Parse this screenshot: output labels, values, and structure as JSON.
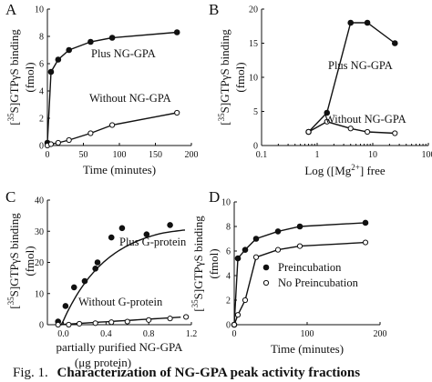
{
  "caption": {
    "prefix": "Fig. 1.",
    "bold": "Characterization of NG-GPA peak activity fractions"
  },
  "chart_data": [
    {
      "panel": "A",
      "type": "line",
      "xlabel": "Time (minutes)",
      "ylabel": "[35S]GTPγS binding (fmol)",
      "ylabel_parts": [
        "[",
        "35",
        "S]GTPγS binding",
        "(fmol)"
      ],
      "xlim": [
        0,
        200
      ],
      "ylim": [
        0,
        10
      ],
      "xticks": [
        0,
        50,
        100,
        150,
        200
      ],
      "yticks": [
        0,
        2,
        4,
        6,
        8,
        10
      ],
      "grid": false,
      "series": [
        {
          "name": "Plus NG-GPA",
          "marker": "filled-circle",
          "x": [
            0,
            5,
            15,
            30,
            60,
            90,
            180
          ],
          "y": [
            0.2,
            5.4,
            6.3,
            7.0,
            7.6,
            7.9,
            8.3
          ]
        },
        {
          "name": "Without NG-GPA",
          "marker": "open-circle",
          "x": [
            0,
            5,
            15,
            30,
            60,
            90,
            180
          ],
          "y": [
            0,
            0.1,
            0.2,
            0.4,
            0.9,
            1.5,
            2.4
          ]
        }
      ]
    },
    {
      "panel": "B",
      "type": "line",
      "xlabel": "Log ([Mg2+] free",
      "xlabel_parts": [
        "Log ([Mg",
        "2+",
        "] free"
      ],
      "ylabel": "[35S]GTPγS binding (fmol)",
      "ylabel_parts": [
        "[",
        "35",
        "S]GTPγS binding",
        "(fmol)"
      ],
      "xscale": "log",
      "xlim": [
        0.1,
        100
      ],
      "ylim": [
        0,
        20
      ],
      "xticks": [
        0.1,
        1,
        10,
        100
      ],
      "xtick_labels": [
        "0.1",
        "1",
        "10",
        "100"
      ],
      "yticks": [
        0,
        5,
        10,
        15,
        20
      ],
      "grid": false,
      "series": [
        {
          "name": "Plus NG-GPA",
          "marker": "filled-circle",
          "x": [
            0.7,
            1.5,
            4,
            8,
            25
          ],
          "y": [
            2.0,
            4.8,
            18.0,
            18.0,
            15.0
          ]
        },
        {
          "name": "Without NG-GPA",
          "marker": "open-circle",
          "x": [
            0.7,
            1.5,
            4,
            8,
            25
          ],
          "y": [
            2.0,
            3.5,
            2.5,
            2.0,
            1.8
          ]
        }
      ]
    },
    {
      "panel": "C",
      "type": "scatter",
      "xlabel": "partially purified NG-GPA",
      "xlabel2": "(μg protein)",
      "ylabel": "[35S]GTPγS binding (fmol)",
      "ylabel_parts": [
        "[",
        "35",
        "S]GTPγS binding",
        "(fmol)"
      ],
      "xlim": [
        -0.15,
        1.2
      ],
      "ylim": [
        0,
        40
      ],
      "xticks": [
        0.0,
        0.4,
        0.8,
        1.2
      ],
      "xtick_labels": [
        "0.0",
        "0.4",
        "0.8",
        "1.2"
      ],
      "yticks": [
        0,
        10,
        20,
        30,
        40
      ],
      "grid": false,
      "series": [
        {
          "name": "Plus G-protein",
          "marker": "filled-circle",
          "x": [
            -0.05,
            0.02,
            0.1,
            0.2,
            0.3,
            0.32,
            0.45,
            0.55,
            0.78,
            1.0
          ],
          "y": [
            1,
            6,
            12,
            14,
            18,
            20,
            28,
            31,
            29,
            32
          ]
        },
        {
          "name": "Without G-protein",
          "marker": "open-circle",
          "x": [
            -0.05,
            0.05,
            0.15,
            0.3,
            0.45,
            0.6,
            0.8,
            1.0,
            1.15
          ],
          "y": [
            0,
            0,
            0.3,
            0.5,
            0.8,
            1.0,
            1.5,
            2.0,
            2.5
          ]
        }
      ]
    },
    {
      "panel": "D",
      "type": "line",
      "xlabel": "Time (minutes)",
      "ylabel": "[35S]GTPγS binding (fmol)",
      "ylabel_parts": [
        "[",
        "35",
        "S]GTPγS binding",
        "(fmol)"
      ],
      "xlim": [
        0,
        200
      ],
      "ylim": [
        0,
        10
      ],
      "xticks": [
        0,
        100,
        200
      ],
      "yticks": [
        0,
        2,
        4,
        6,
        8,
        10
      ],
      "grid": false,
      "legend": "right",
      "series": [
        {
          "name": "Preincubation",
          "marker": "filled-circle",
          "x": [
            0,
            5,
            15,
            30,
            60,
            90,
            180
          ],
          "y": [
            0,
            5.4,
            6.1,
            7.0,
            7.6,
            8.0,
            8.3
          ]
        },
        {
          "name": "No Preincubation",
          "marker": "open-circle",
          "x": [
            0,
            5,
            15,
            30,
            60,
            90,
            180
          ],
          "y": [
            0,
            0.8,
            2.0,
            5.5,
            6.1,
            6.4,
            6.7
          ]
        }
      ]
    }
  ]
}
